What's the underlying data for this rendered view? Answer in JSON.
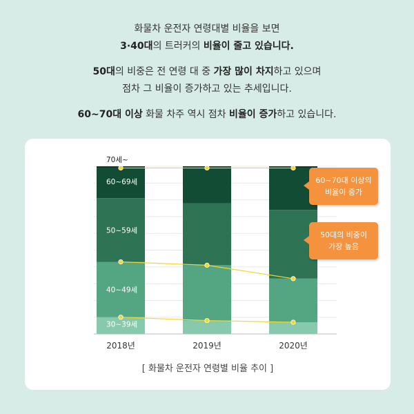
{
  "intro": {
    "para1": [
      [
        {
          "t": "화물차 운전자 연령대별 비율을 보면",
          "b": false
        }
      ],
      [
        {
          "t": "3·40대",
          "b": true
        },
        {
          "t": "의 트러커의 ",
          "b": false
        },
        {
          "t": "비율이 줄고 있습니다.",
          "b": true
        }
      ]
    ],
    "para2": [
      [
        {
          "t": "50대",
          "b": true
        },
        {
          "t": "의 비중은 전 연령 대 중 ",
          "b": false
        },
        {
          "t": "가장 많이 차지",
          "b": true
        },
        {
          "t": "하고 있으며",
          "b": false
        }
      ],
      [
        {
          "t": "점차 그 비율이 증가하고 있는 추세입니다.",
          "b": false
        }
      ]
    ],
    "para3": [
      [
        {
          "t": "60~70대 이상",
          "b": true
        },
        {
          "t": " 화물 차주 역시 점차 ",
          "b": false
        },
        {
          "t": "비율이 증가",
          "b": true
        },
        {
          "t": "하고 있습니다.",
          "b": false
        }
      ]
    ]
  },
  "chart_data": {
    "type": "bar",
    "stacked": true,
    "categories": [
      "2018년",
      "2019년",
      "2020년"
    ],
    "series": [
      {
        "name": "30~39세",
        "values": [
          10,
          8,
          7
        ],
        "color": "#86c9ac"
      },
      {
        "name": "40~49세",
        "values": [
          33,
          33,
          26
        ],
        "color": "#54a581"
      },
      {
        "name": "50~59세",
        "values": [
          38,
          37,
          41
        ],
        "color": "#2f7355"
      },
      {
        "name": "60~69세",
        "values": [
          18,
          21,
          25
        ],
        "color": "#134c35"
      },
      {
        "name": "70세~",
        "values": [
          1,
          1,
          1
        ],
        "color": "#0b3825"
      }
    ],
    "ylim": [
      0,
      100
    ],
    "grid": true,
    "marker_color": "#f5d630",
    "title": "",
    "xlabel": "",
    "ylabel": "",
    "caption": "[ 화물차 운전자 연령별 비율 추이 ]"
  },
  "callouts": [
    {
      "lines": [
        "60~70대 이상의",
        "비율이 증가"
      ],
      "color": "#f5923e"
    },
    {
      "lines": [
        "50대의 비중이",
        "가장 높음"
      ],
      "color": "#f5923e"
    }
  ]
}
